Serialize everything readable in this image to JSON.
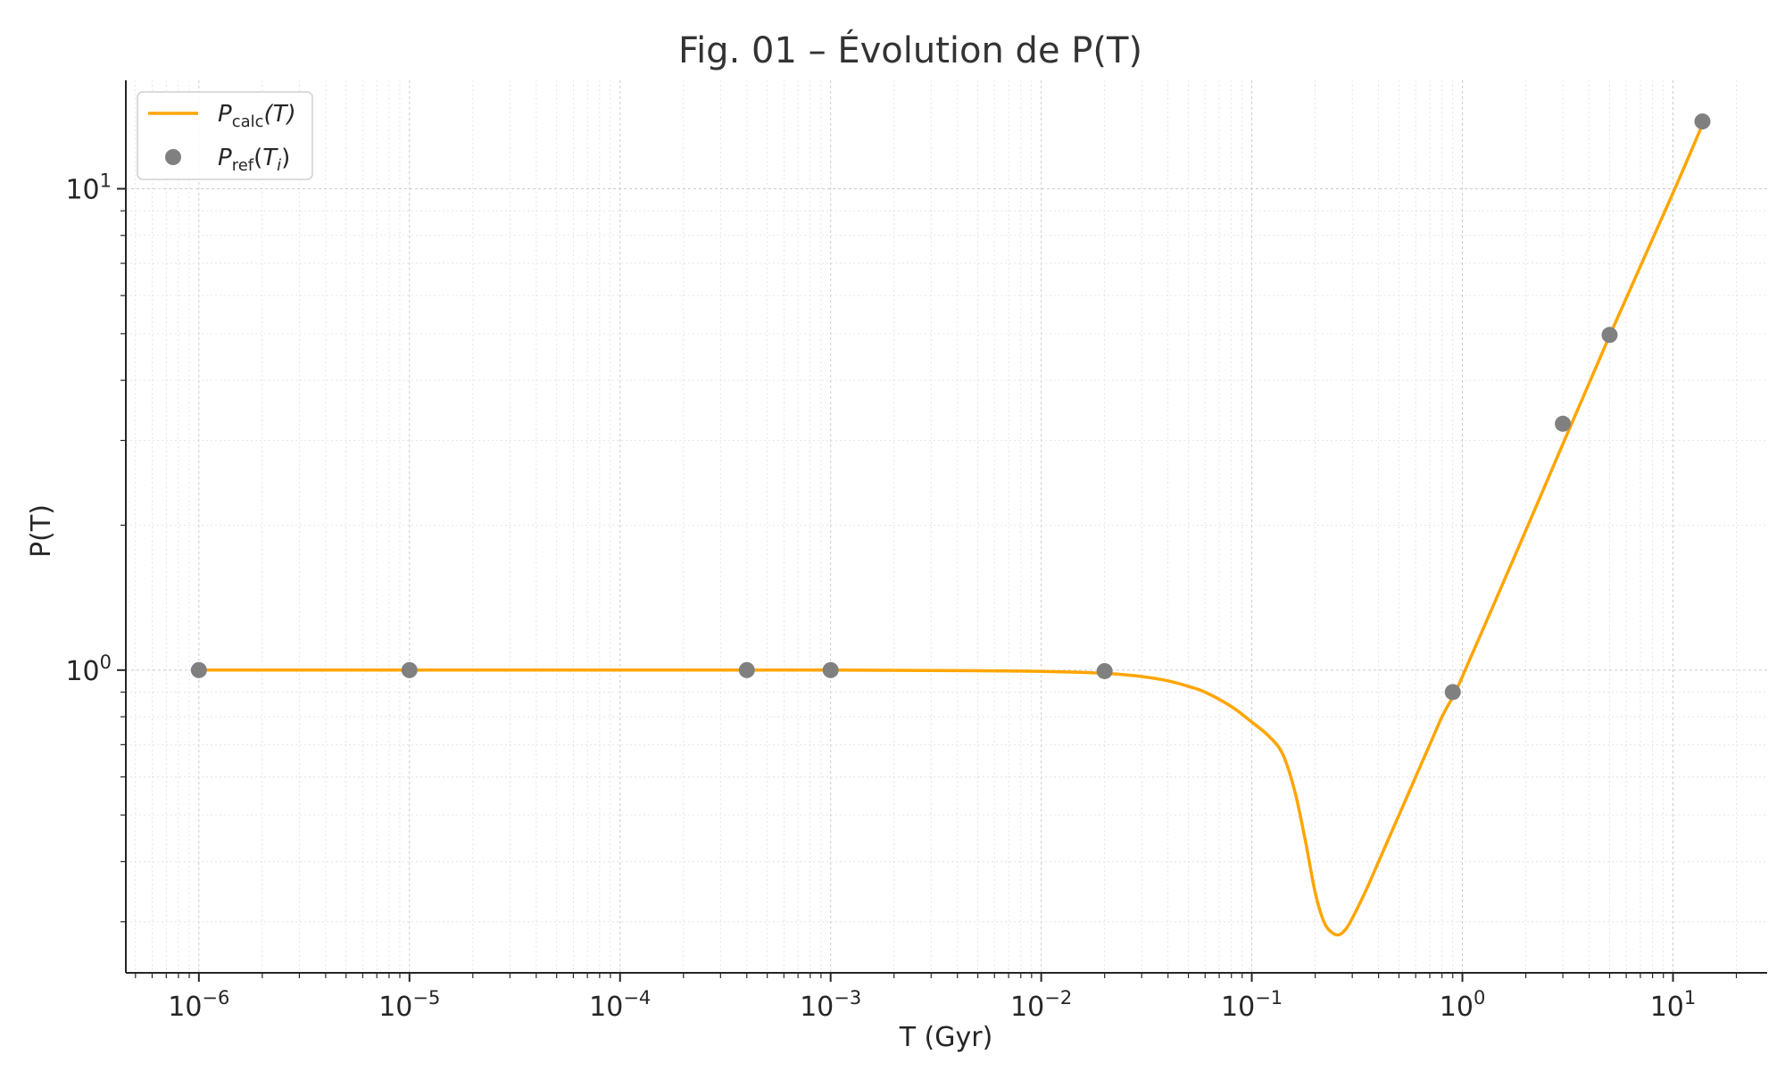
{
  "chart_data": {
    "type": "line",
    "title": "Fig. 01 – Évolution de P(T)",
    "xlabel": "T (Gyr)",
    "ylabel": "P(T)",
    "x_scale": "log",
    "y_scale": "log",
    "xlim": [
      4.5e-07,
      28
    ],
    "ylim": [
      0.235,
      16.8
    ],
    "grid": true,
    "legend_position": "top-left",
    "x_ticks": [
      {
        "value": 1e-06,
        "base": "10",
        "exp": "−6"
      },
      {
        "value": 1e-05,
        "base": "10",
        "exp": "−5"
      },
      {
        "value": 0.0001,
        "base": "10",
        "exp": "−4"
      },
      {
        "value": 0.001,
        "base": "10",
        "exp": "−3"
      },
      {
        "value": 0.01,
        "base": "10",
        "exp": "−2"
      },
      {
        "value": 0.1,
        "base": "10",
        "exp": "−1"
      },
      {
        "value": 1,
        "base": "10",
        "exp": "0"
      },
      {
        "value": 10,
        "base": "10",
        "exp": "1"
      }
    ],
    "y_ticks": [
      {
        "value": 1,
        "base": "10",
        "exp": "0"
      },
      {
        "value": 10,
        "base": "10",
        "exp": "1"
      }
    ],
    "series": [
      {
        "name": "P_calc(T)",
        "legend_main": "P",
        "legend_sub": "calc",
        "legend_rest": "(T)",
        "kind": "line",
        "color": "#FFA500",
        "x": [
          1e-06,
          1e-05,
          0.0001,
          0.001,
          0.005,
          0.01,
          0.02,
          0.03,
          0.04,
          0.05,
          0.06,
          0.08,
          0.1,
          0.12,
          0.14,
          0.16,
          0.18,
          0.2,
          0.22,
          0.24,
          0.26,
          0.28,
          0.3,
          0.35,
          0.4,
          0.5,
          0.6,
          0.7,
          0.8,
          0.9,
          1.0,
          2.0,
          3.0,
          5.0,
          10.0,
          13.8
        ],
        "y": [
          1.0,
          1.0,
          1.0,
          1.0,
          0.997,
          0.994,
          0.985,
          0.97,
          0.95,
          0.925,
          0.9,
          0.84,
          0.78,
          0.73,
          0.67,
          0.56,
          0.44,
          0.345,
          0.3,
          0.285,
          0.282,
          0.29,
          0.305,
          0.35,
          0.4,
          0.5,
          0.6,
          0.7,
          0.8,
          0.88,
          0.97,
          1.95,
          2.95,
          4.95,
          9.8,
          13.6
        ]
      },
      {
        "name": "P_ref(T_i)",
        "legend_main": "P",
        "legend_sub": "ref",
        "legend_rest_open": "(",
        "legend_rest_var": "T",
        "legend_rest_idx": "i",
        "legend_rest_close": ")",
        "kind": "scatter",
        "color": "#808080",
        "x": [
          1e-06,
          1e-05,
          0.0004,
          0.001,
          0.02,
          0.9,
          3.0,
          5.0,
          13.8
        ],
        "y": [
          1.0,
          1.0,
          1.0,
          1.0,
          0.995,
          0.9,
          3.25,
          4.97,
          13.8
        ]
      }
    ]
  }
}
